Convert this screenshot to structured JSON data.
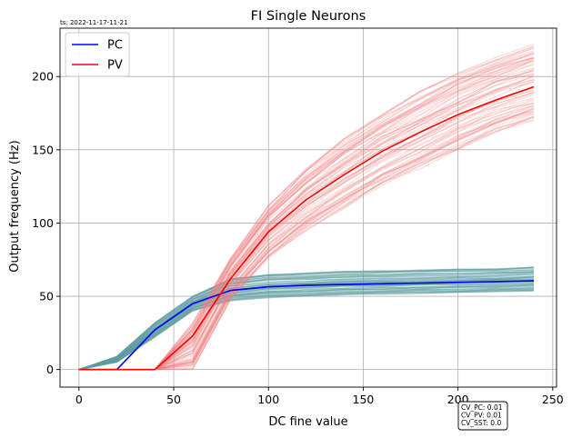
{
  "timestamp": "ts: 2022-11-17-11-21",
  "chart_data": {
    "type": "line",
    "title": "FI Single Neurons",
    "xlabel": "DC fine value",
    "ylabel": "Output frequency (Hz)",
    "xlim": [
      -10,
      252
    ],
    "ylim": [
      -12,
      233
    ],
    "xticks": [
      0,
      50,
      100,
      150,
      200,
      250
    ],
    "yticks": [
      0,
      50,
      100,
      150,
      200
    ],
    "grid": true,
    "legend_position": "top-left",
    "x": [
      0,
      20,
      40,
      60,
      80,
      100,
      120,
      140,
      160,
      180,
      200,
      220,
      240
    ],
    "series": [
      {
        "name": "PC",
        "color": "#0000ff",
        "values": [
          0,
          0,
          27,
          45,
          54,
          56.5,
          57.5,
          58,
          58.5,
          59,
          59.5,
          60,
          60.5
        ]
      },
      {
        "name": "PV",
        "color": "#ff0000",
        "values": [
          0,
          0,
          0,
          23,
          62,
          94,
          116,
          133,
          149,
          162,
          174,
          184,
          193
        ]
      }
    ],
    "background_bundles": [
      {
        "group": "PC single neurons",
        "color": "#5f9ea0",
        "lower": [
          0,
          5,
          22,
          40,
          47,
          49,
          50,
          51,
          51.5,
          52,
          52.5,
          53,
          53.5
        ],
        "upper": [
          0,
          9,
          32,
          50,
          62,
          65,
          66,
          67,
          67.5,
          68,
          68.5,
          69,
          70
        ]
      },
      {
        "group": "PV single neurons",
        "color": "#f08080",
        "lower": [
          0,
          0,
          0,
          0,
          48,
          76,
          95,
          110,
          125,
          137,
          150,
          162,
          170
        ],
        "upper": [
          0,
          0,
          0,
          32,
          77,
          112,
          138,
          158,
          175,
          190,
          203,
          213,
          222
        ]
      }
    ],
    "annotation": [
      "CV_PC: 0.01",
      "CV_PV: 0.01",
      "CV_SST: 0.0"
    ]
  }
}
